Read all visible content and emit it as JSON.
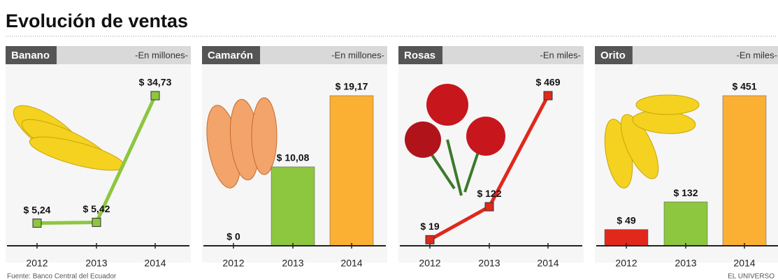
{
  "title": "Evolución de ventas",
  "source": "Fuente: Banco Central del Ecuador",
  "credit": "EL UNIVERSO",
  "chart_data": [
    {
      "type": "line",
      "title": "Banano",
      "subtitle": "-En millones-",
      "categories": [
        "2012",
        "2013",
        "2014"
      ],
      "values": [
        5.24,
        5.42,
        34.73
      ],
      "value_labels": [
        "$ 5,24",
        "$ 5,42",
        "$ 34,73"
      ],
      "color": "#8dc63f"
    },
    {
      "type": "bar",
      "title": "Camarón",
      "subtitle": "-En millones-",
      "categories": [
        "2012",
        "2013",
        "2014"
      ],
      "values": [
        0,
        10.08,
        19.17
      ],
      "value_labels": [
        "$ 0",
        "$ 10,08",
        "$ 19,17"
      ],
      "colors": [
        "#e0281c",
        "#8dc63f",
        "#fbb034"
      ]
    },
    {
      "type": "line",
      "title": "Rosas",
      "subtitle": "-En miles-",
      "categories": [
        "2012",
        "2013",
        "2014"
      ],
      "values": [
        19,
        122,
        469
      ],
      "value_labels": [
        "$ 19",
        "$ 122",
        "$ 469"
      ],
      "color": "#e0281c"
    },
    {
      "type": "bar",
      "title": "Orito",
      "subtitle": "-En miles-",
      "categories": [
        "2012",
        "2013",
        "2014"
      ],
      "values": [
        49,
        132,
        451
      ],
      "value_labels": [
        "$ 49",
        "$ 132",
        "$ 451"
      ],
      "colors": [
        "#e0281c",
        "#8dc63f",
        "#fbb034"
      ]
    }
  ]
}
